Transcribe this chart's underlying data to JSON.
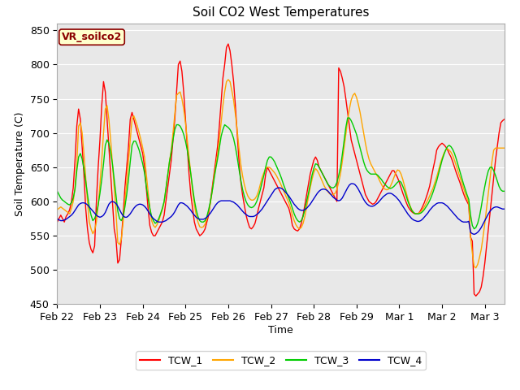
{
  "title": "Soil CO2 West Temperatures",
  "xlabel": "Time",
  "ylabel": "Soil Temperature (C)",
  "ylim": [
    450,
    860
  ],
  "yticks": [
    450,
    500,
    550,
    600,
    650,
    700,
    750,
    800,
    850
  ],
  "annotation_text": "VR_soilco2",
  "plot_bg_color": "#e8e8e8",
  "fig_bg_color": "#ffffff",
  "grid_color": "white",
  "line_colors": {
    "TCW_1": "#ff0000",
    "TCW_2": "#ffa500",
    "TCW_3": "#00cc00",
    "TCW_4": "#0000cc"
  },
  "x_tick_labels": [
    "Feb 22",
    "Feb 23",
    "Feb 24",
    "Feb 25",
    "Feb 26",
    "Feb 27",
    "Feb 28",
    "Feb 29",
    "Mar 1",
    "Mar 2",
    "Mar 3"
  ],
  "x_tick_positions": [
    0,
    24,
    48,
    72,
    96,
    120,
    144,
    168,
    192,
    216,
    240
  ],
  "TCW_1": [
    570,
    575,
    580,
    575,
    570,
    578,
    582,
    588,
    600,
    620,
    660,
    710,
    735,
    720,
    680,
    640,
    590,
    560,
    540,
    530,
    525,
    535,
    600,
    650,
    690,
    740,
    775,
    760,
    720,
    680,
    640,
    600,
    560,
    545,
    510,
    515,
    545,
    580,
    620,
    650,
    680,
    720,
    730,
    720,
    710,
    700,
    690,
    680,
    670,
    650,
    620,
    590,
    565,
    555,
    550,
    550,
    555,
    560,
    565,
    570,
    580,
    600,
    620,
    640,
    660,
    690,
    720,
    760,
    800,
    805,
    790,
    760,
    720,
    680,
    640,
    610,
    590,
    570,
    560,
    555,
    550,
    552,
    555,
    560,
    570,
    580,
    600,
    620,
    640,
    660,
    680,
    710,
    745,
    780,
    800,
    825,
    830,
    820,
    800,
    775,
    740,
    700,
    660,
    630,
    610,
    595,
    580,
    570,
    562,
    560,
    563,
    568,
    578,
    590,
    600,
    610,
    620,
    640,
    650,
    645,
    640,
    635,
    630,
    625,
    620,
    615,
    610,
    605,
    600,
    595,
    590,
    580,
    565,
    560,
    558,
    557,
    560,
    568,
    580,
    595,
    610,
    625,
    640,
    650,
    660,
    665,
    660,
    650,
    645,
    640,
    635,
    630,
    625,
    620,
    615,
    610,
    605,
    600,
    795,
    790,
    780,
    768,
    750,
    730,
    710,
    690,
    680,
    670,
    660,
    650,
    640,
    630,
    620,
    610,
    605,
    600,
    598,
    596,
    597,
    600,
    605,
    610,
    615,
    620,
    625,
    630,
    635,
    640,
    645,
    645,
    640,
    635,
    628,
    620,
    612,
    605,
    598,
    592,
    588,
    585,
    583,
    582,
    582,
    583,
    587,
    592,
    598,
    605,
    613,
    622,
    635,
    648,
    660,
    675,
    680,
    683,
    685,
    683,
    680,
    676,
    670,
    665,
    658,
    650,
    642,
    635,
    628,
    620,
    612,
    605,
    600,
    595,
    548,
    542,
    465,
    462,
    465,
    468,
    475,
    490,
    510,
    535,
    560,
    585,
    610,
    635,
    660,
    680,
    700,
    715,
    718,
    720
  ],
  "TCW_2": [
    588,
    590,
    592,
    590,
    588,
    586,
    584,
    582,
    590,
    600,
    620,
    655,
    710,
    715,
    700,
    670,
    635,
    600,
    570,
    560,
    553,
    558,
    570,
    595,
    625,
    660,
    700,
    735,
    740,
    720,
    690,
    655,
    620,
    585,
    540,
    537,
    545,
    570,
    600,
    628,
    658,
    690,
    720,
    725,
    718,
    710,
    700,
    690,
    678,
    665,
    640,
    615,
    590,
    572,
    565,
    562,
    566,
    572,
    580,
    588,
    598,
    618,
    638,
    658,
    675,
    700,
    728,
    755,
    758,
    760,
    750,
    735,
    715,
    690,
    665,
    640,
    615,
    595,
    580,
    570,
    563,
    562,
    563,
    567,
    575,
    585,
    598,
    615,
    635,
    652,
    668,
    690,
    715,
    740,
    760,
    775,
    778,
    775,
    762,
    748,
    728,
    705,
    678,
    655,
    638,
    625,
    615,
    608,
    604,
    602,
    602,
    604,
    608,
    615,
    625,
    635,
    642,
    648,
    650,
    650,
    648,
    645,
    642,
    638,
    633,
    628,
    622,
    616,
    610,
    604,
    598,
    590,
    580,
    572,
    566,
    562,
    560,
    562,
    568,
    578,
    592,
    606,
    620,
    632,
    642,
    648,
    645,
    640,
    634,
    628,
    622,
    618,
    614,
    611,
    610,
    610,
    612,
    618,
    628,
    640,
    658,
    678,
    698,
    718,
    735,
    748,
    755,
    758,
    752,
    742,
    730,
    715,
    700,
    685,
    672,
    662,
    655,
    650,
    645,
    640,
    636,
    630,
    625,
    620,
    618,
    617,
    618,
    622,
    628,
    635,
    642,
    646,
    645,
    640,
    632,
    622,
    612,
    602,
    594,
    588,
    584,
    582,
    582,
    583,
    585,
    588,
    592,
    597,
    602,
    608,
    614,
    620,
    628,
    636,
    645,
    655,
    663,
    670,
    675,
    677,
    675,
    672,
    667,
    660,
    652,
    644,
    636,
    628,
    620,
    612,
    605,
    598,
    548,
    525,
    505,
    503,
    508,
    518,
    530,
    548,
    568,
    590,
    612,
    635,
    658,
    675,
    678,
    678,
    678,
    678,
    678,
    678
  ],
  "TCW_3": [
    615,
    610,
    605,
    602,
    600,
    598,
    596,
    595,
    598,
    605,
    618,
    645,
    665,
    670,
    662,
    648,
    630,
    610,
    592,
    580,
    572,
    575,
    582,
    595,
    612,
    632,
    655,
    682,
    690,
    685,
    672,
    655,
    632,
    608,
    586,
    575,
    572,
    578,
    592,
    610,
    632,
    658,
    682,
    688,
    688,
    682,
    675,
    665,
    655,
    642,
    622,
    605,
    590,
    578,
    572,
    568,
    570,
    575,
    582,
    590,
    600,
    618,
    638,
    658,
    672,
    690,
    705,
    712,
    712,
    710,
    705,
    698,
    688,
    675,
    658,
    640,
    620,
    602,
    588,
    578,
    572,
    570,
    570,
    572,
    578,
    588,
    600,
    615,
    632,
    648,
    662,
    678,
    695,
    705,
    712,
    710,
    708,
    705,
    700,
    692,
    680,
    665,
    648,
    632,
    618,
    608,
    600,
    595,
    592,
    591,
    592,
    595,
    600,
    608,
    617,
    628,
    638,
    650,
    660,
    665,
    665,
    662,
    658,
    652,
    646,
    640,
    633,
    625,
    618,
    611,
    605,
    598,
    590,
    582,
    576,
    572,
    570,
    572,
    578,
    588,
    600,
    612,
    625,
    638,
    648,
    655,
    654,
    650,
    645,
    640,
    635,
    630,
    625,
    622,
    620,
    620,
    622,
    628,
    638,
    650,
    668,
    688,
    708,
    722,
    722,
    718,
    712,
    705,
    698,
    688,
    678,
    668,
    658,
    650,
    645,
    642,
    640,
    640,
    640,
    640,
    638,
    635,
    632,
    628,
    625,
    622,
    620,
    619,
    620,
    622,
    625,
    628,
    630,
    628,
    622,
    615,
    607,
    599,
    593,
    587,
    584,
    582,
    582,
    582,
    583,
    585,
    588,
    592,
    596,
    601,
    607,
    614,
    622,
    630,
    640,
    650,
    660,
    668,
    675,
    680,
    682,
    680,
    676,
    670,
    662,
    653,
    644,
    635,
    626,
    618,
    610,
    603,
    580,
    565,
    560,
    562,
    568,
    578,
    592,
    608,
    622,
    635,
    645,
    650,
    650,
    645,
    638,
    630,
    622,
    617,
    615,
    615
  ],
  "TCW_4": [
    575,
    573,
    572,
    572,
    573,
    574,
    576,
    578,
    580,
    583,
    587,
    591,
    595,
    597,
    598,
    598,
    597,
    595,
    592,
    589,
    586,
    583,
    580,
    578,
    577,
    578,
    580,
    584,
    590,
    596,
    599,
    600,
    599,
    597,
    593,
    588,
    583,
    579,
    577,
    577,
    579,
    582,
    586,
    590,
    593,
    595,
    596,
    596,
    595,
    593,
    590,
    586,
    582,
    578,
    575,
    573,
    571,
    570,
    570,
    570,
    571,
    572,
    574,
    576,
    578,
    581,
    585,
    590,
    595,
    598,
    598,
    597,
    595,
    593,
    590,
    587,
    583,
    580,
    577,
    575,
    574,
    574,
    574,
    575,
    577,
    580,
    583,
    587,
    591,
    595,
    598,
    600,
    601,
    601,
    601,
    601,
    601,
    601,
    600,
    599,
    597,
    595,
    592,
    589,
    586,
    583,
    581,
    579,
    578,
    578,
    578,
    579,
    581,
    583,
    586,
    589,
    593,
    597,
    601,
    605,
    609,
    613,
    617,
    619,
    620,
    620,
    619,
    617,
    614,
    611,
    608,
    604,
    600,
    596,
    593,
    590,
    588,
    587,
    587,
    588,
    590,
    593,
    596,
    600,
    604,
    608,
    612,
    615,
    617,
    618,
    618,
    617,
    615,
    612,
    609,
    606,
    604,
    602,
    601,
    602,
    605,
    610,
    615,
    620,
    624,
    626,
    626,
    625,
    622,
    618,
    613,
    608,
    603,
    599,
    596,
    594,
    593,
    593,
    594,
    596,
    598,
    601,
    604,
    607,
    609,
    611,
    612,
    612,
    611,
    609,
    607,
    604,
    601,
    597,
    593,
    589,
    585,
    581,
    578,
    575,
    573,
    572,
    571,
    571,
    572,
    574,
    577,
    580,
    583,
    587,
    590,
    593,
    595,
    597,
    598,
    598,
    598,
    597,
    595,
    593,
    590,
    587,
    584,
    581,
    578,
    575,
    573,
    571,
    570,
    570,
    570,
    571,
    555,
    553,
    552,
    553,
    555,
    558,
    562,
    567,
    572,
    577,
    582,
    586,
    589,
    591,
    592,
    592,
    591,
    590,
    589,
    589
  ]
}
